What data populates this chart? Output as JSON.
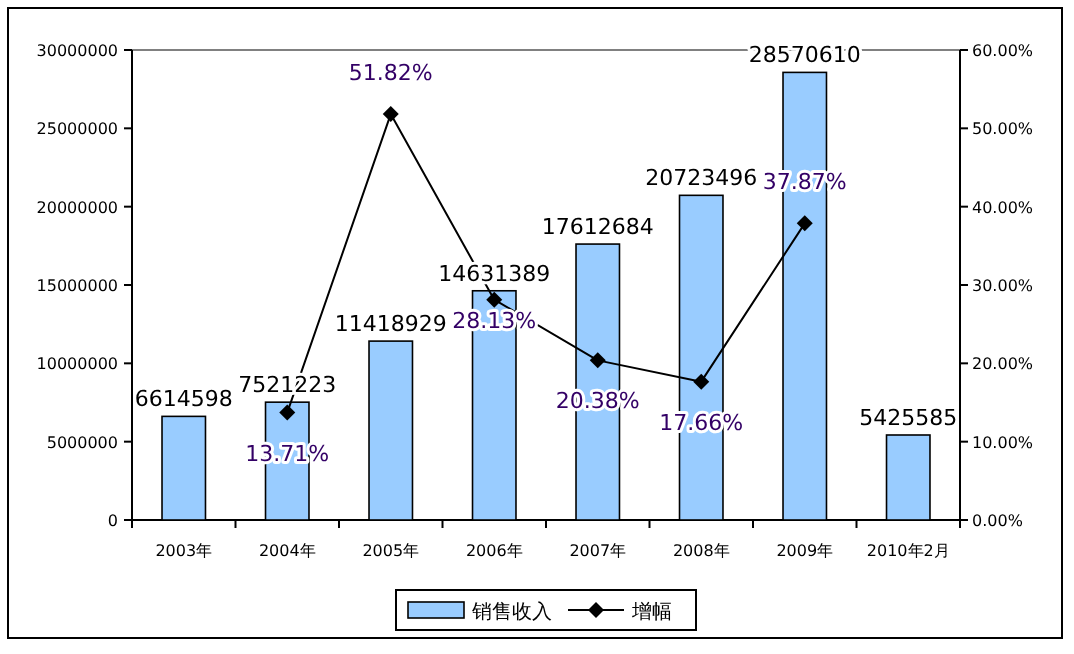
{
  "chart_data": {
    "type": "bar",
    "categories": [
      "2003年",
      "2004年",
      "2005年",
      "2006年",
      "2007年",
      "2008年",
      "2009年",
      "2010年2月"
    ],
    "series": [
      {
        "name": "销售收入",
        "color": "#99ccff",
        "values": [
          6614598,
          7521223,
          11418929,
          14631389,
          17612684,
          20723496,
          28570610,
          5425585
        ],
        "value_labels": [
          "6614598",
          "7521223",
          "11418929",
          "14631389",
          "17612684",
          "20723496",
          "28570610",
          "5425585"
        ]
      },
      {
        "name": "增幅",
        "type": "line",
        "axis": "y2",
        "color": "#000000",
        "marker": "diamond",
        "values": [
          null,
          13.71,
          51.82,
          28.13,
          20.38,
          17.66,
          37.87,
          null
        ],
        "value_labels": [
          null,
          "13.71%",
          "51.82%",
          "28.13%",
          "20.38%",
          "17.66%",
          "37.87%",
          null
        ]
      }
    ],
    "ylim": [
      0,
      30000000
    ],
    "yticks": [
      0,
      5000000,
      10000000,
      15000000,
      20000000,
      25000000,
      30000000
    ],
    "y2lim": [
      0,
      60
    ],
    "y2ticks": [
      {
        "value": 0,
        "label": "0.00%"
      },
      {
        "value": 10,
        "label": "10.00%"
      },
      {
        "value": 20,
        "label": "20.00%"
      },
      {
        "value": 30,
        "label": "30.00%"
      },
      {
        "value": 40,
        "label": "40.00%"
      },
      {
        "value": 50,
        "label": "50.00%"
      },
      {
        "value": 60,
        "label": "60.00%"
      }
    ],
    "legend": "bottom"
  }
}
